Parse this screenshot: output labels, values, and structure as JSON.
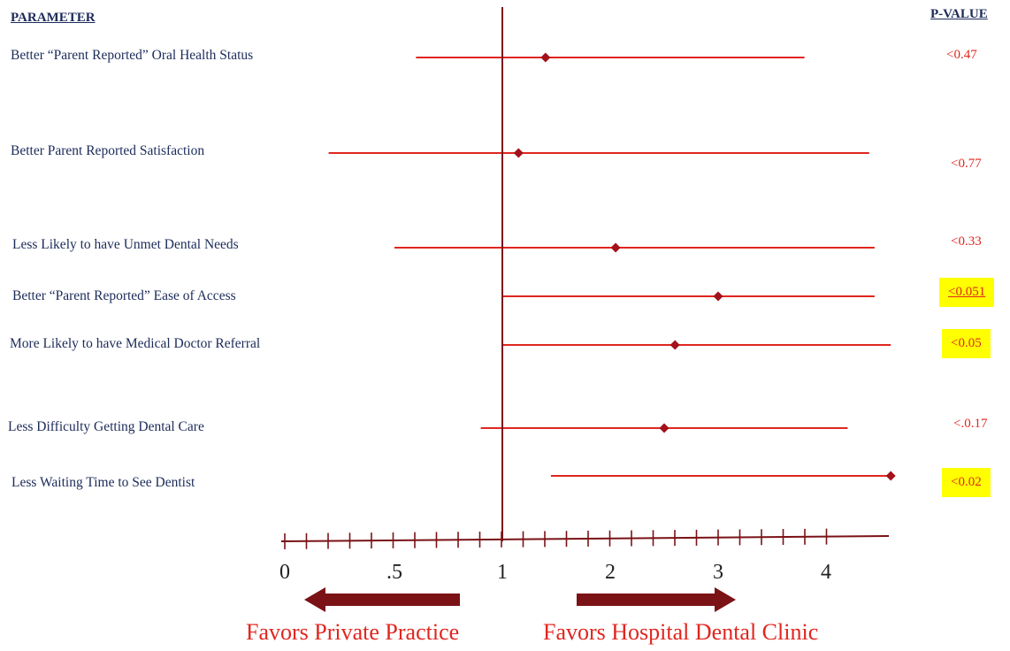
{
  "header": {
    "parameter": "PARAMETER",
    "pvalue": "P-VALUE"
  },
  "colors": {
    "line": "#e0261f",
    "marker": "#a3111a",
    "axis": "#7a1216",
    "arrow": "#7a1216",
    "highlight": "#ffff00",
    "label": "#1c2b5a"
  },
  "chart_data": {
    "type": "forest",
    "rows": [
      {
        "label": "Better “Parent Reported” Oral Health Status",
        "point": 1.4,
        "ci_low": 0.6,
        "ci_high": 3.8,
        "pvalue": "<0.47",
        "highlight": false,
        "underline": false
      },
      {
        "label": "Better Parent Reported Satisfaction",
        "point": 1.15,
        "ci_low": 0.2,
        "ci_high": 4.4,
        "pvalue": "<0.77",
        "highlight": false,
        "underline": false
      },
      {
        "label": "Less Likely to have Unmet Dental Needs",
        "point": 2.05,
        "ci_low": 0.5,
        "ci_high": 4.45,
        "pvalue": "<0.33",
        "highlight": false,
        "underline": false
      },
      {
        "label": "Better “Parent Reported” Ease of Access",
        "point": 3.0,
        "ci_low": 1.0,
        "ci_high": 4.45,
        "pvalue": "<0.051",
        "highlight": true,
        "underline": true
      },
      {
        "label": "More Likely to have Medical Doctor Referral",
        "point": 2.6,
        "ci_low": 1.0,
        "ci_high": 4.6,
        "pvalue": "<0.05",
        "highlight": true,
        "underline": false
      },
      {
        "label": "Less Difficulty Getting Dental Care",
        "point": 2.5,
        "ci_low": 0.9,
        "ci_high": 4.2,
        "pvalue": "<.0.17",
        "highlight": false,
        "underline": false
      },
      {
        "label": "Less Waiting Time to See Dentist",
        "point": 4.6,
        "ci_low": 1.45,
        "ci_high": 4.6,
        "pvalue": "<0.02",
        "highlight": true,
        "underline": false
      }
    ],
    "x_ticks": [
      {
        "label": "0",
        "value": 0
      },
      {
        "label": ".5",
        "value": 0.5
      },
      {
        "label": "1",
        "value": 1
      },
      {
        "label": "2",
        "value": 2
      },
      {
        "label": "3",
        "value": 3
      },
      {
        "label": "4",
        "value": 4
      }
    ],
    "reference_line": 1,
    "xlim": [
      0,
      4.7
    ]
  },
  "favors": {
    "left": "Favors Private Practice",
    "right": "Favors Hospital Dental Clinic"
  }
}
